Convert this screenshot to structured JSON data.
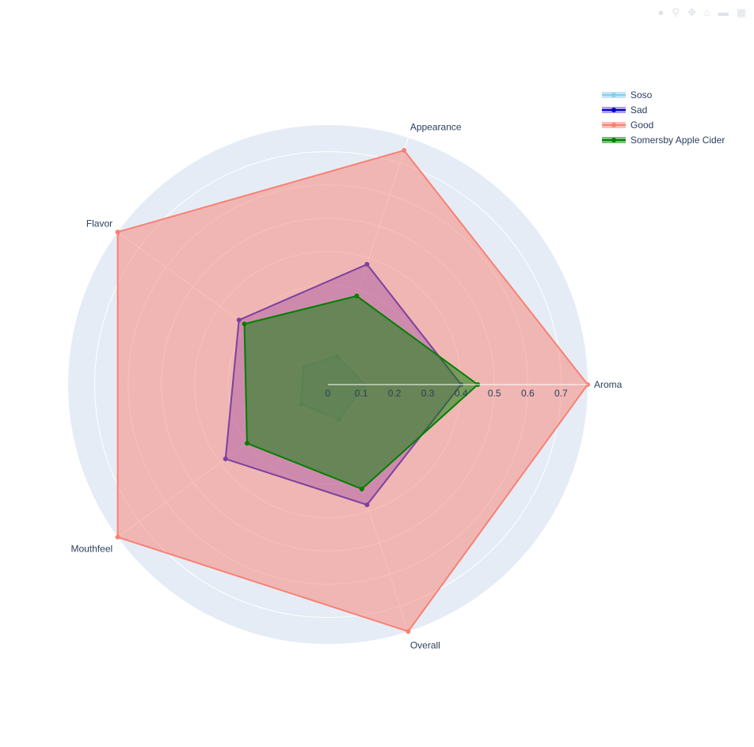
{
  "modebar": {
    "icons": [
      "camera-icon",
      "zoom-icon",
      "pan-icon",
      "reset-icon",
      "autoscale-icon",
      "plotly-logo-icon"
    ]
  },
  "chart_data": {
    "type": "radar",
    "axes": [
      "Aroma",
      "Appearance",
      "Flavor",
      "Mouthfeel",
      "Overall"
    ],
    "radial_ticks": [
      "0",
      "0.1",
      "0.2",
      "0.3",
      "0.4",
      "0.5",
      "0.6",
      "0.7"
    ],
    "radial_range": [
      0,
      0.78
    ],
    "background_color": "#e5ecf6",
    "grid": true,
    "legend_position": "top-right",
    "series": [
      {
        "name": "Soso",
        "color": "#87ceeb",
        "fill": "rgba(135,206,235,0.5)",
        "values": [
          0.11,
          0.09,
          0.09,
          0.1,
          0.11
        ]
      },
      {
        "name": "Sad",
        "color": "#0000cd",
        "fill": "rgba(95,60,220,0.5)",
        "values": [
          0.4,
          0.38,
          0.33,
          0.38,
          0.38
        ]
      },
      {
        "name": "Good",
        "color": "#fa8072",
        "fill": "rgba(250,128,114,0.5)",
        "values": [
          0.78,
          0.74,
          0.78,
          0.78,
          0.78
        ]
      },
      {
        "name": "Somersby Apple Cider",
        "color": "#008000",
        "fill": "rgba(0,128,0,0.5)",
        "values": [
          0.45,
          0.28,
          0.31,
          0.3,
          0.33
        ]
      }
    ]
  }
}
